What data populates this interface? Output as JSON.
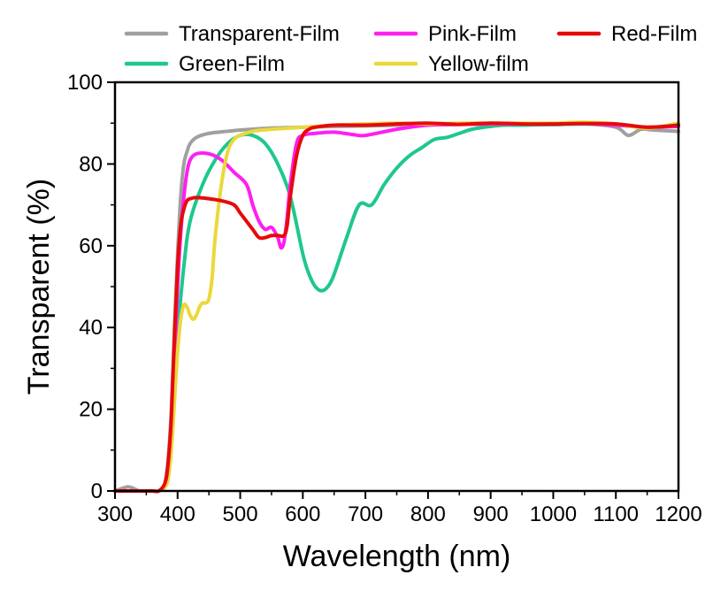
{
  "chart_data": {
    "type": "line",
    "title": "",
    "xlabel": "Wavelength (nm)",
    "ylabel": "Transparent (%)",
    "xlim": [
      300,
      1200
    ],
    "ylim": [
      0,
      100
    ],
    "xticks": [
      300,
      400,
      500,
      600,
      700,
      800,
      900,
      1000,
      1100,
      1200
    ],
    "yticks": [
      0,
      20,
      40,
      60,
      80,
      100
    ],
    "legend_position": "top",
    "series": [
      {
        "name": "Transparent-Film",
        "color": "#a0a0a0",
        "x": [
          300,
          320,
          330,
          340,
          360,
          370,
          375,
          380,
          385,
          390,
          395,
          400,
          405,
          410,
          415,
          420,
          430,
          450,
          480,
          500,
          550,
          600,
          650,
          700,
          750,
          800,
          850,
          900,
          950,
          1000,
          1050,
          1100,
          1120,
          1140,
          1160,
          1200
        ],
        "y": [
          0,
          1,
          0.6,
          0,
          0,
          0,
          0.5,
          2,
          8,
          20,
          40,
          58,
          72,
          80,
          83,
          85,
          86.5,
          87.5,
          88,
          88.3,
          88.8,
          89,
          89.2,
          89.3,
          89.5,
          89.6,
          89.7,
          89.8,
          89.7,
          89.6,
          89.8,
          89,
          87,
          88.5,
          88.3,
          88
        ]
      },
      {
        "name": "Green-Film",
        "color": "#1ec88c",
        "x": [
          300,
          320,
          340,
          360,
          370,
          380,
          385,
          390,
          395,
          400,
          410,
          420,
          440,
          460,
          480,
          500,
          520,
          540,
          560,
          580,
          600,
          610,
          620,
          630,
          640,
          650,
          670,
          690,
          710,
          730,
          750,
          770,
          790,
          810,
          830,
          850,
          870,
          890,
          920,
          950,
          1000,
          1050,
          1100,
          1150,
          1200
        ],
        "y": [
          0,
          0,
          0,
          0,
          0,
          1,
          4,
          12,
          25,
          38,
          55,
          66,
          75,
          81,
          85,
          87,
          87,
          85,
          80,
          72,
          58,
          53,
          50,
          49,
          50,
          53,
          62,
          70,
          70,
          75,
          79,
          82,
          84,
          86,
          86.5,
          87.5,
          88.5,
          89,
          89.5,
          89.5,
          89.7,
          89.8,
          89.8,
          89,
          89.5
        ]
      },
      {
        "name": "Pink-Film",
        "color": "#ff1ef0",
        "x": [
          300,
          320,
          340,
          360,
          370,
          380,
          385,
          390,
          395,
          400,
          405,
          410,
          415,
          420,
          430,
          450,
          470,
          490,
          510,
          520,
          530,
          540,
          550,
          560,
          565,
          570,
          575,
          580,
          590,
          600,
          620,
          650,
          680,
          700,
          750,
          800,
          850,
          900,
          950,
          1000,
          1050,
          1100,
          1150,
          1200
        ],
        "y": [
          0,
          0,
          0,
          0,
          0,
          1,
          4,
          14,
          32,
          50,
          63,
          72,
          78,
          81,
          82.5,
          82.5,
          81,
          78,
          75,
          70,
          66,
          64,
          64.5,
          62,
          59.5,
          61,
          67,
          75,
          85,
          87,
          87.5,
          87.8,
          87.2,
          87,
          88.5,
          89.5,
          89.7,
          89.8,
          89.8,
          89.8,
          89.9,
          89.5,
          89,
          89.2
        ]
      },
      {
        "name": "Yellow-film",
        "color": "#ebd83c",
        "x": [
          300,
          320,
          340,
          360,
          370,
          380,
          385,
          390,
          395,
          400,
          405,
          410,
          415,
          420,
          425,
          430,
          435,
          440,
          445,
          450,
          455,
          460,
          470,
          480,
          490,
          500,
          520,
          550,
          600,
          650,
          700,
          750,
          800,
          850,
          900,
          950,
          1000,
          1050,
          1100,
          1150,
          1200
        ],
        "y": [
          0,
          0,
          0,
          0,
          0,
          1,
          3,
          10,
          22,
          34,
          42,
          45.5,
          45,
          43,
          42,
          43,
          45,
          46,
          46,
          47,
          52,
          62,
          75,
          83,
          86,
          87,
          88,
          88.5,
          89,
          89.5,
          89.8,
          90,
          89.8,
          90,
          90,
          90,
          90,
          90.2,
          89.8,
          88.8,
          90
        ]
      },
      {
        "name": "Red-Film",
        "color": "#e60a0a",
        "x": [
          300,
          320,
          340,
          360,
          370,
          380,
          385,
          390,
          395,
          400,
          405,
          410,
          415,
          420,
          430,
          450,
          470,
          490,
          500,
          510,
          520,
          530,
          540,
          550,
          560,
          570,
          575,
          580,
          590,
          600,
          610,
          620,
          650,
          700,
          750,
          800,
          850,
          900,
          950,
          1000,
          1050,
          1100,
          1150,
          1200
        ],
        "y": [
          0,
          0,
          0,
          0,
          0,
          2,
          7,
          18,
          38,
          55,
          65,
          69,
          71,
          71.5,
          71.8,
          71.5,
          71,
          70,
          68,
          66,
          64,
          62,
          62,
          62.5,
          62.5,
          62.5,
          65,
          72,
          82,
          87,
          88.5,
          89,
          89.5,
          89.5,
          89.8,
          90,
          89.7,
          90,
          89.8,
          89.8,
          89.9,
          89.8,
          89,
          89.5
        ]
      }
    ],
    "legend": [
      {
        "label": "Transparent-Film",
        "color": "#a0a0a0"
      },
      {
        "label": "Pink-Film",
        "color": "#ff1ef0"
      },
      {
        "label": "Red-Film",
        "color": "#e60a0a"
      },
      {
        "label": "Green-Film",
        "color": "#1ec88c"
      },
      {
        "label": "Yellow-film",
        "color": "#ebd83c"
      }
    ]
  }
}
